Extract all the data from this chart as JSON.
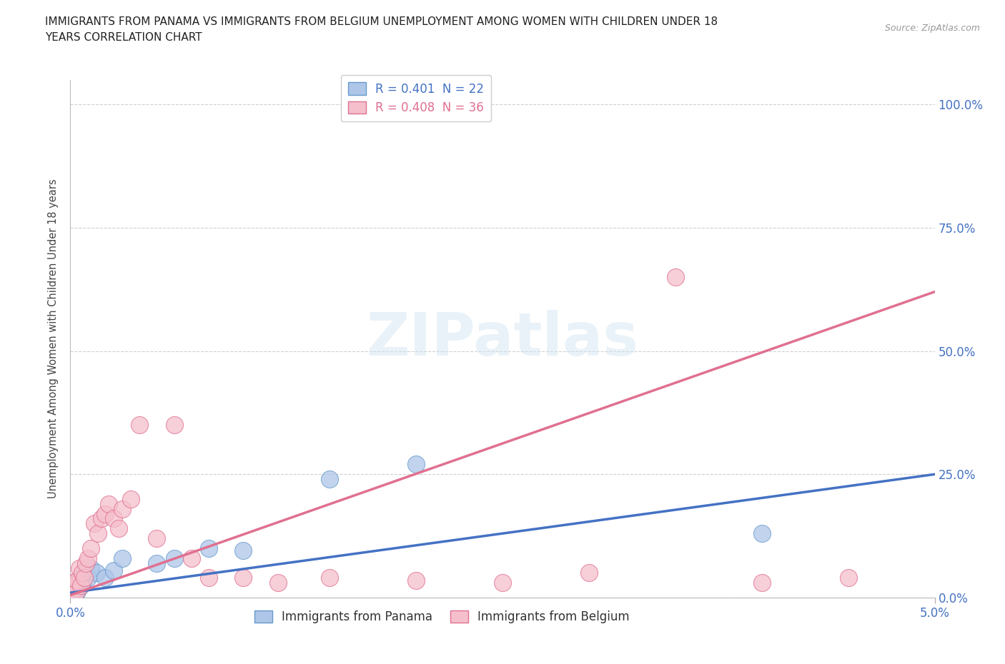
{
  "title": "IMMIGRANTS FROM PANAMA VS IMMIGRANTS FROM BELGIUM UNEMPLOYMENT AMONG WOMEN WITH CHILDREN UNDER 18\nYEARS CORRELATION CHART",
  "source": "Source: ZipAtlas.com",
  "ylabel": "Unemployment Among Women with Children Under 18 years",
  "xlim": [
    0.0,
    0.05
  ],
  "ylim": [
    0.0,
    1.05
  ],
  "yticks": [
    0.0,
    0.25,
    0.5,
    0.75,
    1.0
  ],
  "ytick_labels": [
    "0.0%",
    "25.0%",
    "50.0%",
    "75.0%",
    "100.0%"
  ],
  "xtick_labels": [
    "0.0%",
    "5.0%"
  ],
  "bg_color": "#ffffff",
  "grid_color": "#d0d0d0",
  "watermark": "ZIPatlas",
  "panama_color": "#aec6e8",
  "panama_edge_color": "#6699cc",
  "panama_line_color": "#4472c4",
  "panama_R": 0.401,
  "panama_N": 22,
  "belgium_color": "#f5c0cc",
  "belgium_edge_color": "#e07090",
  "belgium_line_color": "#e07090",
  "belgium_R": 0.408,
  "belgium_N": 36,
  "panama_x": [
    0.0002,
    0.00025,
    0.0003,
    0.00035,
    0.0004,
    0.0005,
    0.0006,
    0.0007,
    0.0008,
    0.001,
    0.0012,
    0.0015,
    0.002,
    0.0025,
    0.003,
    0.005,
    0.006,
    0.008,
    0.01,
    0.015,
    0.02,
    0.04
  ],
  "panama_y": [
    0.02,
    0.015,
    0.025,
    0.01,
    0.03,
    0.02,
    0.04,
    0.03,
    0.05,
    0.04,
    0.06,
    0.05,
    0.04,
    0.055,
    0.08,
    0.07,
    0.08,
    0.1,
    0.095,
    0.24,
    0.27,
    0.13
  ],
  "belgium_x": [
    0.0001,
    0.00015,
    0.0002,
    0.00025,
    0.0003,
    0.0004,
    0.0005,
    0.0006,
    0.0007,
    0.0008,
    0.0009,
    0.001,
    0.0012,
    0.0014,
    0.0016,
    0.0018,
    0.002,
    0.0022,
    0.0025,
    0.0028,
    0.003,
    0.0035,
    0.004,
    0.005,
    0.006,
    0.007,
    0.008,
    0.01,
    0.012,
    0.015,
    0.02,
    0.025,
    0.03,
    0.035,
    0.04,
    0.045
  ],
  "belgium_y": [
    0.02,
    0.03,
    0.015,
    0.025,
    0.01,
    0.035,
    0.06,
    0.025,
    0.05,
    0.04,
    0.07,
    0.08,
    0.1,
    0.15,
    0.13,
    0.16,
    0.17,
    0.19,
    0.16,
    0.14,
    0.18,
    0.2,
    0.35,
    0.12,
    0.35,
    0.08,
    0.04,
    0.04,
    0.03,
    0.04,
    0.035,
    0.03,
    0.05,
    0.65,
    0.03,
    0.04
  ],
  "panama_line_x0": 0.0,
  "panama_line_y0": 0.01,
  "panama_line_x1": 0.05,
  "panama_line_y1": 0.25,
  "belgium_line_x0": 0.0,
  "belgium_line_y0": 0.005,
  "belgium_line_x1": 0.05,
  "belgium_line_y1": 0.62
}
